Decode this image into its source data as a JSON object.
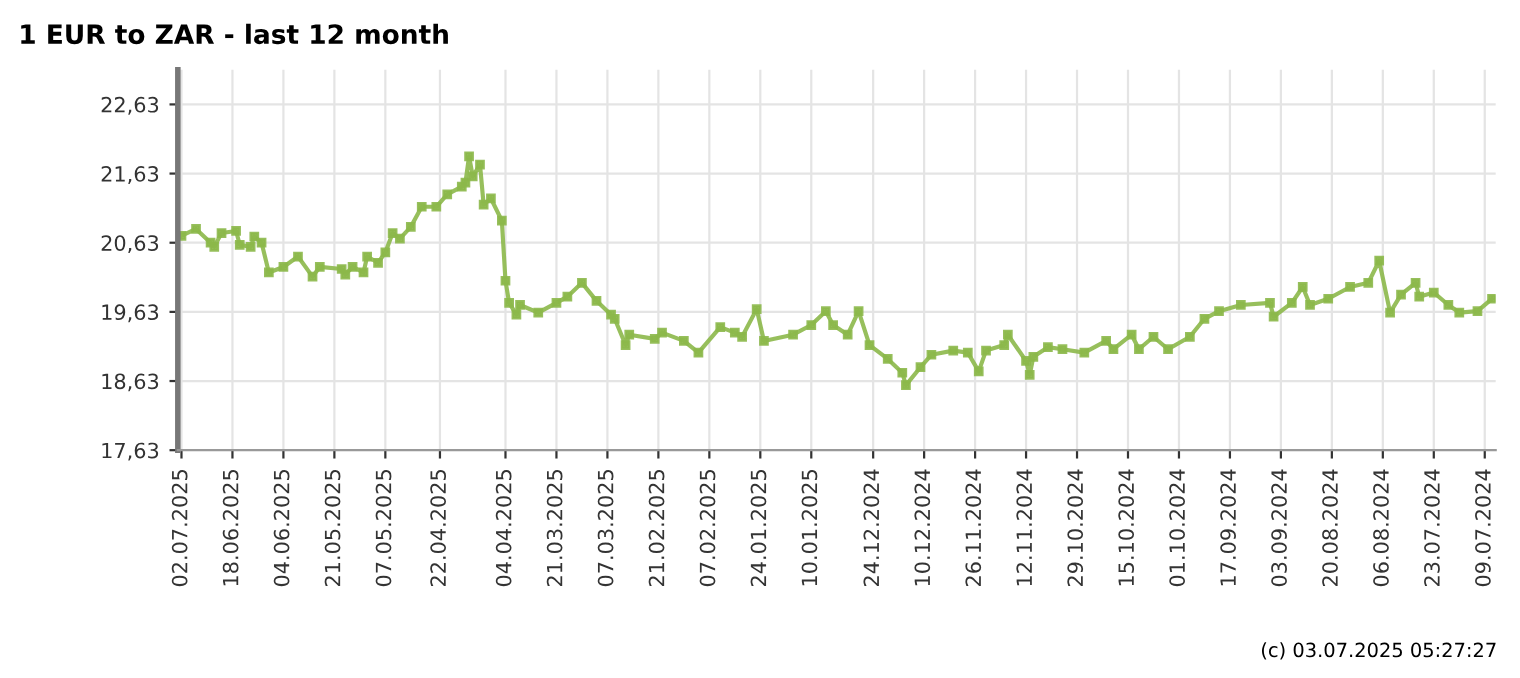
{
  "chart_data": {
    "type": "line",
    "title": "1 EUR to ZAR - last 12 month",
    "annotations": [
      "(c) 03.07.2025 05:27:27"
    ],
    "x": [
      "2025-07-02",
      "2025-06-28",
      "2025-06-24",
      "2025-06-23",
      "2025-06-21",
      "2025-06-17",
      "2025-06-16",
      "2025-06-13",
      "2025-06-12",
      "2025-06-10",
      "2025-06-08",
      "2025-06-04",
      "2025-05-31",
      "2025-05-27",
      "2025-05-25",
      "2025-05-19",
      "2025-05-18",
      "2025-05-16",
      "2025-05-13",
      "2025-05-12",
      "2025-05-09",
      "2025-05-07",
      "2025-05-05",
      "2025-05-03",
      "2025-04-30",
      "2025-04-27",
      "2025-04-23",
      "2025-04-20",
      "2025-04-16",
      "2025-04-15",
      "2025-04-14",
      "2025-04-13",
      "2025-04-11",
      "2025-04-10",
      "2025-04-08",
      "2025-04-05",
      "2025-04-04",
      "2025-04-03",
      "2025-04-01",
      "2025-03-31",
      "2025-03-26",
      "2025-03-21",
      "2025-03-18",
      "2025-03-14",
      "2025-03-10",
      "2025-03-06",
      "2025-03-05",
      "2025-03-02",
      "2025-03-01",
      "2025-02-22",
      "2025-02-20",
      "2025-02-14",
      "2025-02-10",
      "2025-02-04",
      "2025-01-31",
      "2025-01-29",
      "2025-01-25",
      "2025-01-23",
      "2025-01-15",
      "2025-01-10",
      "2025-01-06",
      "2025-01-04",
      "2024-12-31",
      "2024-12-28",
      "2024-12-25",
      "2024-12-20",
      "2024-12-16",
      "2024-12-15",
      "2024-12-11",
      "2024-12-08",
      "2024-12-02",
      "2024-11-28",
      "2024-11-25",
      "2024-11-23",
      "2024-11-18",
      "2024-11-17",
      "2024-11-12",
      "2024-11-11",
      "2024-11-10",
      "2024-11-06",
      "2024-11-02",
      "2024-10-27",
      "2024-10-21",
      "2024-10-19",
      "2024-10-14",
      "2024-10-12",
      "2024-10-08",
      "2024-10-04",
      "2024-09-28",
      "2024-09-24",
      "2024-09-20",
      "2024-09-14",
      "2024-09-06",
      "2024-09-05",
      "2024-08-31",
      "2024-08-28",
      "2024-08-26",
      "2024-08-21",
      "2024-08-15",
      "2024-08-10",
      "2024-08-07",
      "2024-08-04",
      "2024-08-01",
      "2024-07-28",
      "2024-07-27",
      "2024-07-23",
      "2024-07-19",
      "2024-07-16",
      "2024-07-11",
      "2024-07-07"
    ],
    "series": [
      {
        "color": "#8cb84a",
        "values": [
          20.73,
          20.83,
          20.63,
          20.57,
          20.77,
          20.8,
          20.6,
          20.57,
          20.72,
          20.63,
          20.2,
          20.28,
          20.43,
          20.14,
          20.28,
          20.25,
          20.17,
          20.28,
          20.2,
          20.43,
          20.34,
          20.49,
          20.77,
          20.69,
          20.86,
          21.15,
          21.15,
          21.33,
          21.44,
          21.5,
          21.88,
          21.59,
          21.76,
          21.18,
          21.27,
          20.95,
          20.08,
          19.76,
          19.59,
          19.73,
          19.62,
          19.76,
          19.85,
          20.05,
          19.79,
          19.59,
          19.53,
          19.15,
          19.3,
          19.24,
          19.33,
          19.21,
          19.04,
          19.41,
          19.33,
          19.27,
          19.67,
          19.21,
          19.3,
          19.44,
          19.64,
          19.44,
          19.3,
          19.64,
          19.15,
          18.95,
          18.75,
          18.57,
          18.83,
          19.01,
          19.07,
          19.04,
          18.77,
          19.07,
          19.15,
          19.3,
          18.92,
          18.72,
          18.98,
          19.12,
          19.09,
          19.04,
          19.21,
          19.09,
          19.3,
          19.09,
          19.27,
          19.09,
          19.27,
          19.53,
          19.64,
          19.73,
          19.76,
          19.56,
          19.76,
          19.99,
          19.73,
          19.82,
          19.99,
          20.05,
          20.37,
          19.62,
          19.88,
          20.05,
          19.85,
          19.91,
          19.73,
          19.62,
          19.64,
          19.82
        ]
      }
    ],
    "xlim": [
      "2025-07-03",
      "2024-07-06"
    ],
    "xticks": [
      {
        "value": "2025-07-02",
        "label": "02.07.2025"
      },
      {
        "value": "2025-06-18",
        "label": "18.06.2025"
      },
      {
        "value": "2025-06-04",
        "label": "04.06.2025"
      },
      {
        "value": "2025-05-21",
        "label": "21.05.2025"
      },
      {
        "value": "2025-05-07",
        "label": "07.05.2025"
      },
      {
        "value": "2025-04-22",
        "label": "22.04.2025"
      },
      {
        "value": "2025-04-04",
        "label": "04.04.2025"
      },
      {
        "value": "2025-03-21",
        "label": "21.03.2025"
      },
      {
        "value": "2025-03-07",
        "label": "07.03.2025"
      },
      {
        "value": "2025-02-21",
        "label": "21.02.2025"
      },
      {
        "value": "2025-02-07",
        "label": "07.02.2025"
      },
      {
        "value": "2025-01-24",
        "label": "24.01.2025"
      },
      {
        "value": "2025-01-10",
        "label": "10.01.2025"
      },
      {
        "value": "2024-12-24",
        "label": "24.12.2024"
      },
      {
        "value": "2024-12-10",
        "label": "10.12.2024"
      },
      {
        "value": "2024-11-26",
        "label": "26.11.2024"
      },
      {
        "value": "2024-11-12",
        "label": "12.11.2024"
      },
      {
        "value": "2024-10-29",
        "label": "29.10.2024"
      },
      {
        "value": "2024-10-15",
        "label": "15.10.2024"
      },
      {
        "value": "2024-10-01",
        "label": "01.10.2024"
      },
      {
        "value": "2024-09-17",
        "label": "17.09.2024"
      },
      {
        "value": "2024-09-03",
        "label": "03.09.2024"
      },
      {
        "value": "2024-08-20",
        "label": "20.08.2024"
      },
      {
        "value": "2024-08-06",
        "label": "06.08.2024"
      },
      {
        "value": "2024-07-23",
        "label": "23.07.2024"
      },
      {
        "value": "2024-07-09",
        "label": "09.07.2024"
      }
    ],
    "ylim": [
      17.63,
      23.13
    ],
    "yticks": [
      {
        "value": 17.63,
        "label": "17,63"
      },
      {
        "value": 18.63,
        "label": "18,63"
      },
      {
        "value": 19.63,
        "label": "19,63"
      },
      {
        "value": 20.63,
        "label": "20,63"
      },
      {
        "value": 21.63,
        "label": "21,63"
      },
      {
        "value": 22.63,
        "label": "22,63"
      }
    ],
    "grid": true,
    "marker": "square",
    "line_style": "solid",
    "legend": false
  }
}
